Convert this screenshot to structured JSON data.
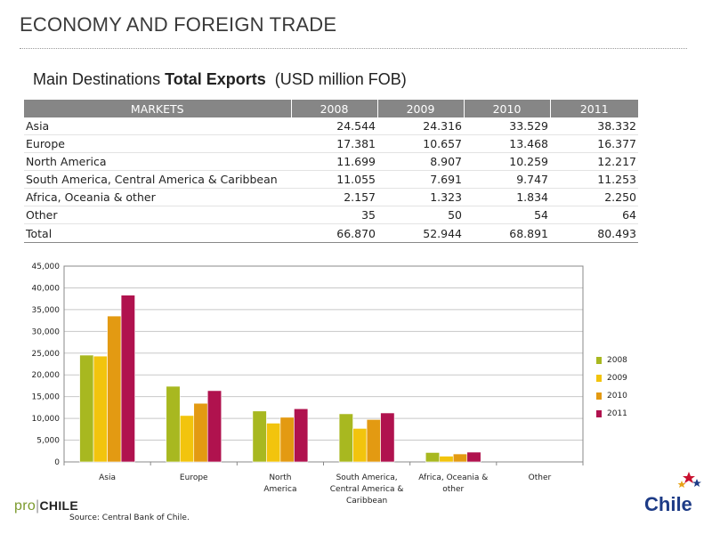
{
  "header": {
    "title": "ECONOMY AND FOREIGN TRADE"
  },
  "subtitle": {
    "prefix": "Main Destinations",
    "bold": "Total Exports",
    "unit": "(USD million FOB)"
  },
  "table": {
    "headers": [
      "MARKETS",
      "2008",
      "2009",
      "2010",
      "2011"
    ],
    "rows": [
      {
        "market": "Asia",
        "values": [
          "24.544",
          "24.316",
          "33.529",
          "38.332"
        ]
      },
      {
        "market": "Europe",
        "values": [
          "17.381",
          "10.657",
          "13.468",
          "16.377"
        ]
      },
      {
        "market": "North America",
        "values": [
          "11.699",
          "8.907",
          "10.259",
          "12.217"
        ]
      },
      {
        "market": "South America, Central America  & Caribbean",
        "values": [
          "11.055",
          "7.691",
          "9.747",
          "11.253"
        ]
      },
      {
        "market": "Africa, Oceania & other",
        "values": [
          "2.157",
          "1.323",
          "1.834",
          "2.250"
        ]
      },
      {
        "market": "Other",
        "values": [
          "35",
          "50",
          "54",
          "64"
        ]
      }
    ],
    "total": {
      "market": "Total",
      "values": [
        "66.870",
        "52.944",
        "68.891",
        "80.493"
      ]
    }
  },
  "chart_data": {
    "type": "bar",
    "title": "",
    "xlabel": "",
    "ylabel": "",
    "ylim": [
      0,
      45000
    ],
    "yticks": [
      "0",
      "5,000",
      "10,000",
      "15,000",
      "20,000",
      "25,000",
      "30,000",
      "35,000",
      "40,000",
      "45,000"
    ],
    "categories": [
      [
        "Asia"
      ],
      [
        "Europe"
      ],
      [
        "North",
        "America"
      ],
      [
        "South America,",
        "Central America  &",
        "Caribbean"
      ],
      [
        "Africa, Oceania &",
        "other"
      ],
      [
        "Other"
      ]
    ],
    "series": [
      {
        "name": "2008",
        "color": "#a8b820",
        "values": [
          24544,
          17381,
          11699,
          11055,
          2157,
          35
        ]
      },
      {
        "name": "2009",
        "color": "#f2c40d",
        "values": [
          24316,
          10657,
          8907,
          7691,
          1323,
          50
        ]
      },
      {
        "name": "2010",
        "color": "#e39a12",
        "values": [
          33529,
          13468,
          10259,
          9747,
          1834,
          54
        ]
      },
      {
        "name": "2011",
        "color": "#b0124e",
        "values": [
          38332,
          16377,
          12217,
          11253,
          2250,
          64
        ]
      }
    ],
    "grid": true,
    "legend": "right"
  },
  "footer": {
    "source": "Source:  Central Bank of Chile.",
    "logo_pro": "pro",
    "logo_sep": "|",
    "logo_chile": "CHILE",
    "brand": "Chile"
  }
}
